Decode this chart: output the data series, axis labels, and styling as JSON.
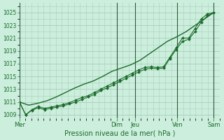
{
  "xlabel": "Pression niveau de la mer( hPa )",
  "bg_color": "#cceedd",
  "grid_color": "#aaccbb",
  "line_color": "#1a6b2a",
  "vline_color": "#2d5a3d",
  "ylim": [
    1008.5,
    1026.5
  ],
  "yticks": [
    1009,
    1011,
    1013,
    1015,
    1017,
    1019,
    1021,
    1023,
    1025
  ],
  "xtick_labels": [
    "Mer",
    "Dim",
    "Jeu",
    "Ven",
    "Sam"
  ],
  "xtick_positions": [
    0,
    16,
    19,
    26,
    32
  ],
  "vline_positions": [
    0,
    16,
    19,
    26,
    32
  ],
  "xlim": [
    0,
    33
  ],
  "smooth_line": [
    1011.0,
    1010.5,
    1010.8,
    1011.2,
    1011.8,
    1012.5,
    1013.2,
    1013.8,
    1014.3,
    1015.0,
    1015.8,
    1016.3,
    1016.8,
    1017.5,
    1018.5,
    1019.5,
    1020.5,
    1021.2,
    1022.0,
    1023.0,
    1024.0,
    1025.0
  ],
  "mid_line": [
    1011.0,
    1009.0,
    1009.8,
    1010.3,
    1010.0,
    1010.2,
    1010.4,
    1010.6,
    1010.9,
    1011.3,
    1011.7,
    1012.0,
    1012.5,
    1013.0,
    1013.5,
    1014.0,
    1014.5,
    1015.0,
    1015.5,
    1016.0,
    1016.4,
    1016.5,
    1016.4,
    1016.5,
    1018.0,
    1019.5,
    1021.0,
    1021.0,
    1022.5,
    1024.0,
    1024.8,
    1025.0
  ],
  "low_line": [
    1011.0,
    1009.0,
    1009.7,
    1010.1,
    1009.8,
    1010.0,
    1010.2,
    1010.4,
    1010.7,
    1011.0,
    1011.4,
    1011.8,
    1012.2,
    1012.8,
    1013.2,
    1013.7,
    1014.2,
    1014.7,
    1015.2,
    1015.7,
    1016.1,
    1016.3,
    1016.2,
    1016.3,
    1017.8,
    1019.2,
    1020.5,
    1020.8,
    1022.0,
    1023.5,
    1024.5,
    1025.0
  ],
  "n_mid": 32,
  "n_smooth": 22,
  "n_low": 32
}
